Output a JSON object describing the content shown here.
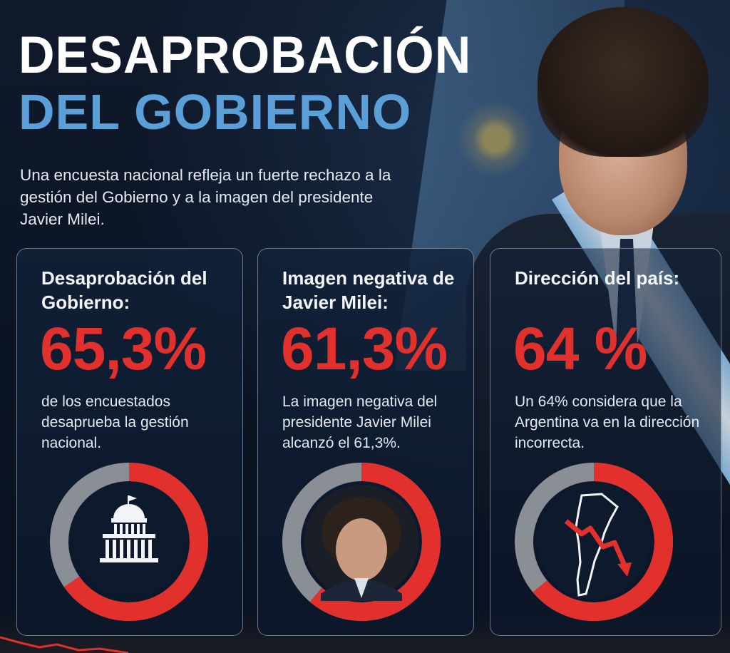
{
  "header": {
    "title_line1": "DESAPROBACIÓN",
    "title_line2": "DEL GOBIERNO",
    "subtitle": "Una encuesta nacional refleja un fuerte rechazo a la gestión del Gobierno y a la imagen del presidente Javier Milei."
  },
  "cards": [
    {
      "heading": "Desaprobación del Gobierno:",
      "value_text": "65,3%",
      "value": 65.3,
      "description": "de los encuestados desaprueba la gestión nacional.",
      "icon": "government-building-icon"
    },
    {
      "heading": "Imagen negativa de Javier Milei:",
      "value_text": "61,3%",
      "value": 61.3,
      "description": "La imagen negativa del presidente Javier Milei alcanzó el 61,3%.",
      "icon": "president-portrait"
    },
    {
      "heading": "Dirección del país:",
      "value_text": "64 %",
      "value": 64,
      "description": "Un 64% considera que la Argentina va en la dirección incorrecta.",
      "icon": "argentina-map-down-arrow-icon"
    }
  ],
  "colors": {
    "accent_red": "#e2302d",
    "title_blue": "#5b9fd8",
    "donut_gray": "#8a8f96",
    "background": "#0c1626"
  }
}
